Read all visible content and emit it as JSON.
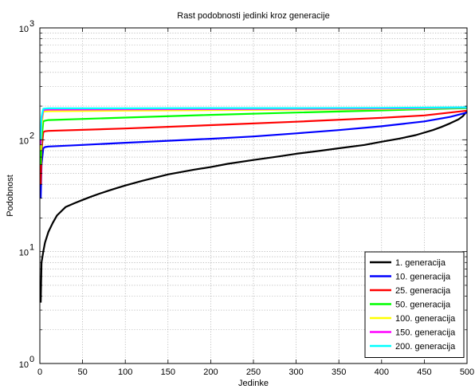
{
  "chart_data": {
    "type": "line",
    "title": "Rast podobnosti jedinki kroz generacije",
    "xlabel": "Jedinke",
    "ylabel": "Podobnost",
    "xlim": [
      0,
      500
    ],
    "ylim": [
      1,
      1000
    ],
    "yscale": "log",
    "grid": true,
    "legend_position": "bottom-right",
    "x_ticks": [
      "0",
      "50",
      "100",
      "150",
      "200",
      "250",
      "300",
      "350",
      "400",
      "450",
      "500"
    ],
    "y_ticks": [
      {
        "base": "10",
        "exp": "0"
      },
      {
        "base": "10",
        "exp": "1"
      },
      {
        "base": "10",
        "exp": "2"
      },
      {
        "base": "10",
        "exp": "3"
      }
    ],
    "series": [
      {
        "name": "1. generacija",
        "color": "#000000",
        "x": [
          1,
          2,
          4,
          6,
          10,
          15,
          20,
          30,
          40,
          50,
          60,
          70,
          80,
          90,
          100,
          120,
          150,
          180,
          200,
          220,
          250,
          280,
          300,
          330,
          350,
          380,
          400,
          420,
          440,
          460,
          470,
          480,
          490,
          495,
          500
        ],
        "y": [
          3.5,
          8,
          10,
          12,
          15,
          18,
          21,
          25,
          27,
          29,
          31,
          33,
          35,
          37,
          39,
          43,
          49,
          54,
          57,
          61,
          66,
          71,
          75,
          80,
          84,
          90,
          96,
          102,
          110,
          122,
          130,
          140,
          152,
          162,
          180
        ]
      },
      {
        "name": "10. generacija",
        "color": "#0000ff",
        "x": [
          1,
          2,
          4,
          6,
          10,
          50,
          100,
          150,
          200,
          250,
          300,
          350,
          400,
          450,
          480,
          500
        ],
        "y": [
          30,
          60,
          84,
          86,
          87,
          90,
          94,
          98,
          102,
          107,
          114,
          122,
          132,
          146,
          160,
          175
        ]
      },
      {
        "name": "25. generacija",
        "color": "#ff0000",
        "x": [
          1,
          2,
          4,
          6,
          10,
          100,
          200,
          300,
          400,
          450,
          500
        ],
        "y": [
          40,
          80,
          117,
          119,
          120,
          126,
          135,
          145,
          157,
          165,
          182
        ]
      },
      {
        "name": "50. generacija",
        "color": "#00ff00",
        "x": [
          1,
          2,
          4,
          6,
          10,
          100,
          200,
          300,
          400,
          500
        ],
        "y": [
          60,
          100,
          146,
          148,
          150,
          158,
          167,
          175,
          183,
          192
        ]
      },
      {
        "name": "100. generacija",
        "color": "#ffff00",
        "x": [
          1,
          2,
          4,
          6,
          10,
          100,
          200,
          300,
          400,
          500
        ],
        "y": [
          80,
          130,
          178,
          179,
          180,
          182,
          184,
          186,
          188,
          194
        ]
      },
      {
        "name": "150. generacija",
        "color": "#ff00ff",
        "x": [
          1,
          2,
          4,
          6,
          10,
          100,
          200,
          300,
          400,
          500
        ],
        "y": [
          90,
          150,
          184,
          185,
          186,
          187,
          188,
          189,
          190,
          194
        ]
      },
      {
        "name": "200. generacija",
        "color": "#00ffff",
        "x": [
          1,
          2,
          4,
          6,
          10,
          100,
          200,
          300,
          400,
          500
        ],
        "y": [
          100,
          160,
          189,
          190,
          191,
          191,
          192,
          192,
          193,
          195
        ]
      }
    ]
  }
}
